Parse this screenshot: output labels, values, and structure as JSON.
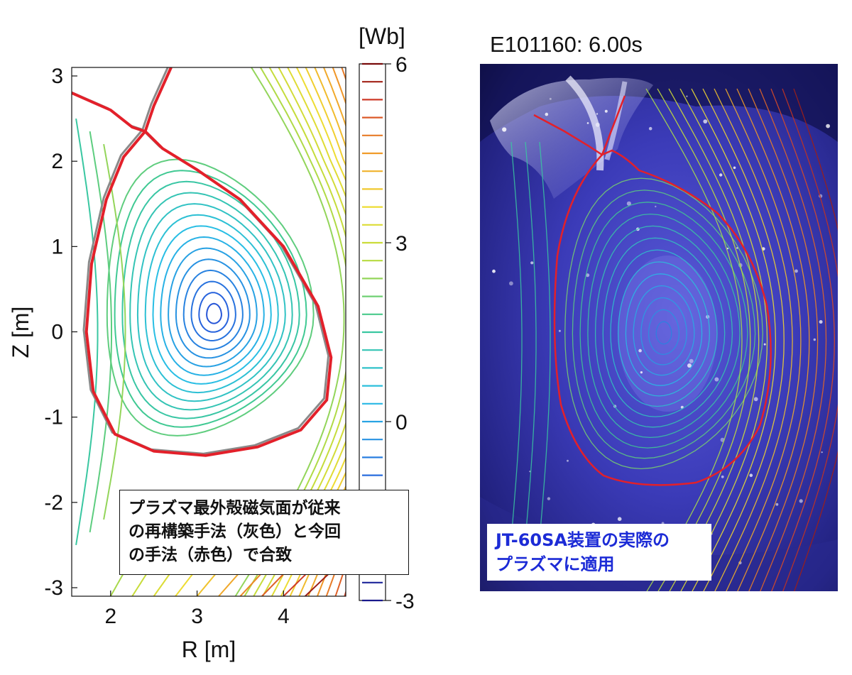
{
  "chart_data": [
    {
      "type": "contour",
      "title": "",
      "xlabel": "R [m]",
      "ylabel": "Z [m]",
      "xlim": [
        1.55,
        4.72
      ],
      "ylim": [
        -3.1,
        3.1
      ],
      "xticks": [
        2,
        3,
        4
      ],
      "yticks": [
        3,
        2,
        1,
        0,
        -1,
        -2,
        -3
      ],
      "axis_center": {
        "R": 3.2,
        "Z": 0.2
      },
      "lcfs": {
        "color_reconstruction": "#e3202a",
        "color_conventional": "#8a8a8a",
        "outline": [
          [
            2.4,
            2.35
          ],
          [
            2.6,
            2.15
          ],
          [
            3.0,
            1.9
          ],
          [
            3.5,
            1.55
          ],
          [
            4.0,
            1.0
          ],
          [
            4.4,
            0.3
          ],
          [
            4.55,
            -0.3
          ],
          [
            4.5,
            -0.8
          ],
          [
            4.2,
            -1.15
          ],
          [
            3.7,
            -1.35
          ],
          [
            3.1,
            -1.45
          ],
          [
            2.5,
            -1.4
          ],
          [
            2.05,
            -1.2
          ],
          [
            1.8,
            -0.7
          ],
          [
            1.72,
            0.0
          ],
          [
            1.78,
            0.8
          ],
          [
            1.95,
            1.55
          ],
          [
            2.15,
            2.05
          ]
        ],
        "x_point": [
          2.4,
          2.35
        ],
        "legs": [
          [
            [
              1.55,
              2.8
            ],
            [
              2.0,
              2.6
            ],
            [
              2.25,
              2.4
            ],
            [
              2.4,
              2.35
            ]
          ],
          [
            [
              2.4,
              2.35
            ],
            [
              2.5,
              2.65
            ],
            [
              2.7,
              3.1
            ]
          ]
        ]
      },
      "colorbar": {
        "label": "[Wb]",
        "range": [
          -3,
          6
        ],
        "ticks": [
          6,
          3,
          0,
          -3
        ],
        "levels": 31
      }
    },
    {
      "type": "image",
      "title": "E101160: 6.00s",
      "overlay": "flux contours with reconstructed plasma boundary (red)"
    }
  ],
  "annotations": {
    "note": [
      "プラズマ最外殻磁気面が従来",
      "の再構築手法（灰色）と今回",
      "の手法（赤色）で合致"
    ],
    "application": [
      "JT-60SA装置の実際の",
      "プラズマに適用"
    ]
  },
  "colors": {
    "boundary_red": "#e3202a",
    "boundary_gray": "#8a8a8a",
    "application_text": "#1c2bd6",
    "photo_background": "#1a1a6e"
  }
}
